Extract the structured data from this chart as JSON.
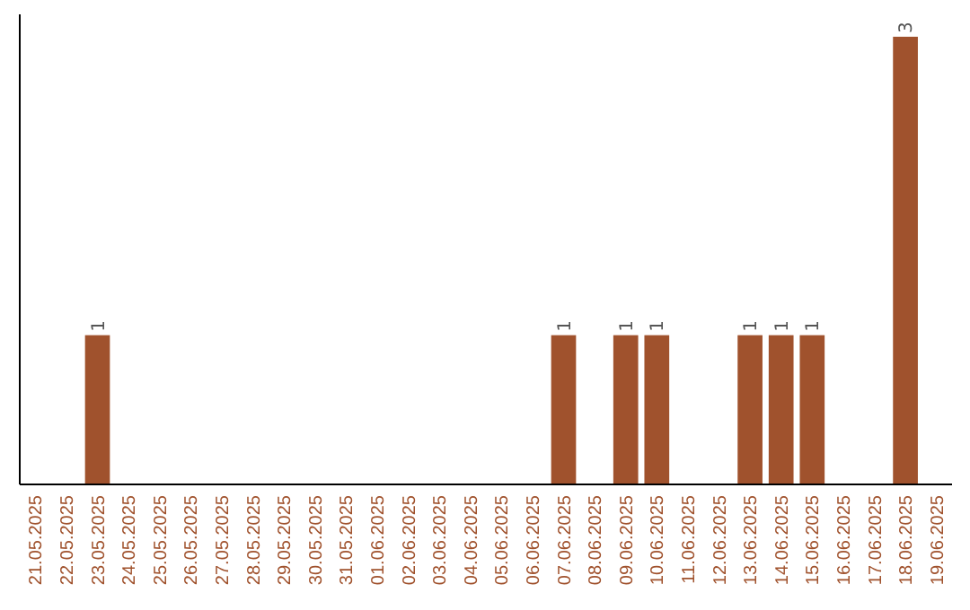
{
  "chart_data": {
    "type": "bar",
    "categories": [
      "21.05.2025",
      "22.05.2025",
      "23.05.2025",
      "24.05.2025",
      "25.05.2025",
      "26.05.2025",
      "27.05.2025",
      "28.05.2025",
      "29.05.2025",
      "30.05.2025",
      "31.05.2025",
      "01.06.2025",
      "02.06.2025",
      "03.06.2025",
      "04.06.2025",
      "05.06.2025",
      "06.06.2025",
      "07.06.2025",
      "08.06.2025",
      "09.06.2025",
      "10.06.2025",
      "11.06.2025",
      "12.06.2025",
      "13.06.2025",
      "14.06.2025",
      "15.06.2025",
      "16.06.2025",
      "17.06.2025",
      "18.06.2025",
      "19.06.2025"
    ],
    "values": [
      0,
      0,
      1,
      0,
      0,
      0,
      0,
      0,
      0,
      0,
      0,
      0,
      0,
      0,
      0,
      0,
      0,
      1,
      0,
      1,
      1,
      0,
      0,
      1,
      1,
      1,
      0,
      0,
      3,
      0
    ],
    "value_labels": [
      null,
      null,
      "1",
      null,
      null,
      null,
      null,
      null,
      null,
      null,
      null,
      null,
      null,
      null,
      null,
      null,
      null,
      "1",
      null,
      "1",
      "1",
      null,
      null,
      "1",
      "1",
      "1",
      null,
      null,
      "3",
      null
    ],
    "color": "#a0522d",
    "grid": false,
    "tick_labels": "x"
  }
}
